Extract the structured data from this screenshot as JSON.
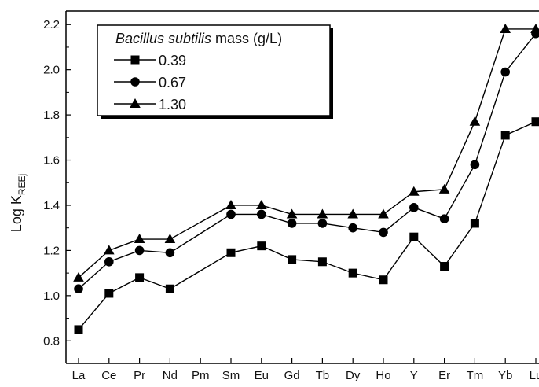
{
  "chart_data": {
    "type": "line",
    "title": "",
    "xlabel": "",
    "ylabel": "Log K",
    "ylabel_sub": "REEj",
    "categories": [
      "La",
      "Ce",
      "Pr",
      "Nd",
      "Pm",
      "Sm",
      "Eu",
      "Gd",
      "Tb",
      "Dy",
      "Ho",
      "Y",
      "Er",
      "Tm",
      "Yb",
      "Lu"
    ],
    "ylim": [
      0.7,
      2.26
    ],
    "yticks": [
      "0.8",
      "1.0",
      "1.2",
      "1.4",
      "1.6",
      "1.8",
      "2.0",
      "2.2"
    ],
    "grid": false,
    "legend": {
      "placement": "top-left",
      "title_italic": "Bacillus subtilis",
      "title_rest": " mass (g/L)"
    },
    "series": [
      {
        "name": "0.39",
        "marker": "square",
        "values": [
          0.85,
          1.01,
          1.08,
          1.03,
          null,
          1.19,
          1.22,
          1.16,
          1.15,
          1.1,
          1.07,
          1.26,
          1.13,
          1.32,
          1.71,
          1.77
        ]
      },
      {
        "name": "0.67",
        "marker": "circle",
        "values": [
          1.03,
          1.15,
          1.2,
          1.19,
          null,
          1.36,
          1.36,
          1.32,
          1.32,
          1.3,
          1.28,
          1.39,
          1.34,
          1.58,
          1.99,
          2.16
        ]
      },
      {
        "name": "1.30",
        "marker": "triangle",
        "values": [
          1.08,
          1.2,
          1.25,
          1.25,
          null,
          1.4,
          1.4,
          1.36,
          1.36,
          1.36,
          1.36,
          1.46,
          1.47,
          1.77,
          2.18,
          2.18
        ]
      }
    ]
  }
}
